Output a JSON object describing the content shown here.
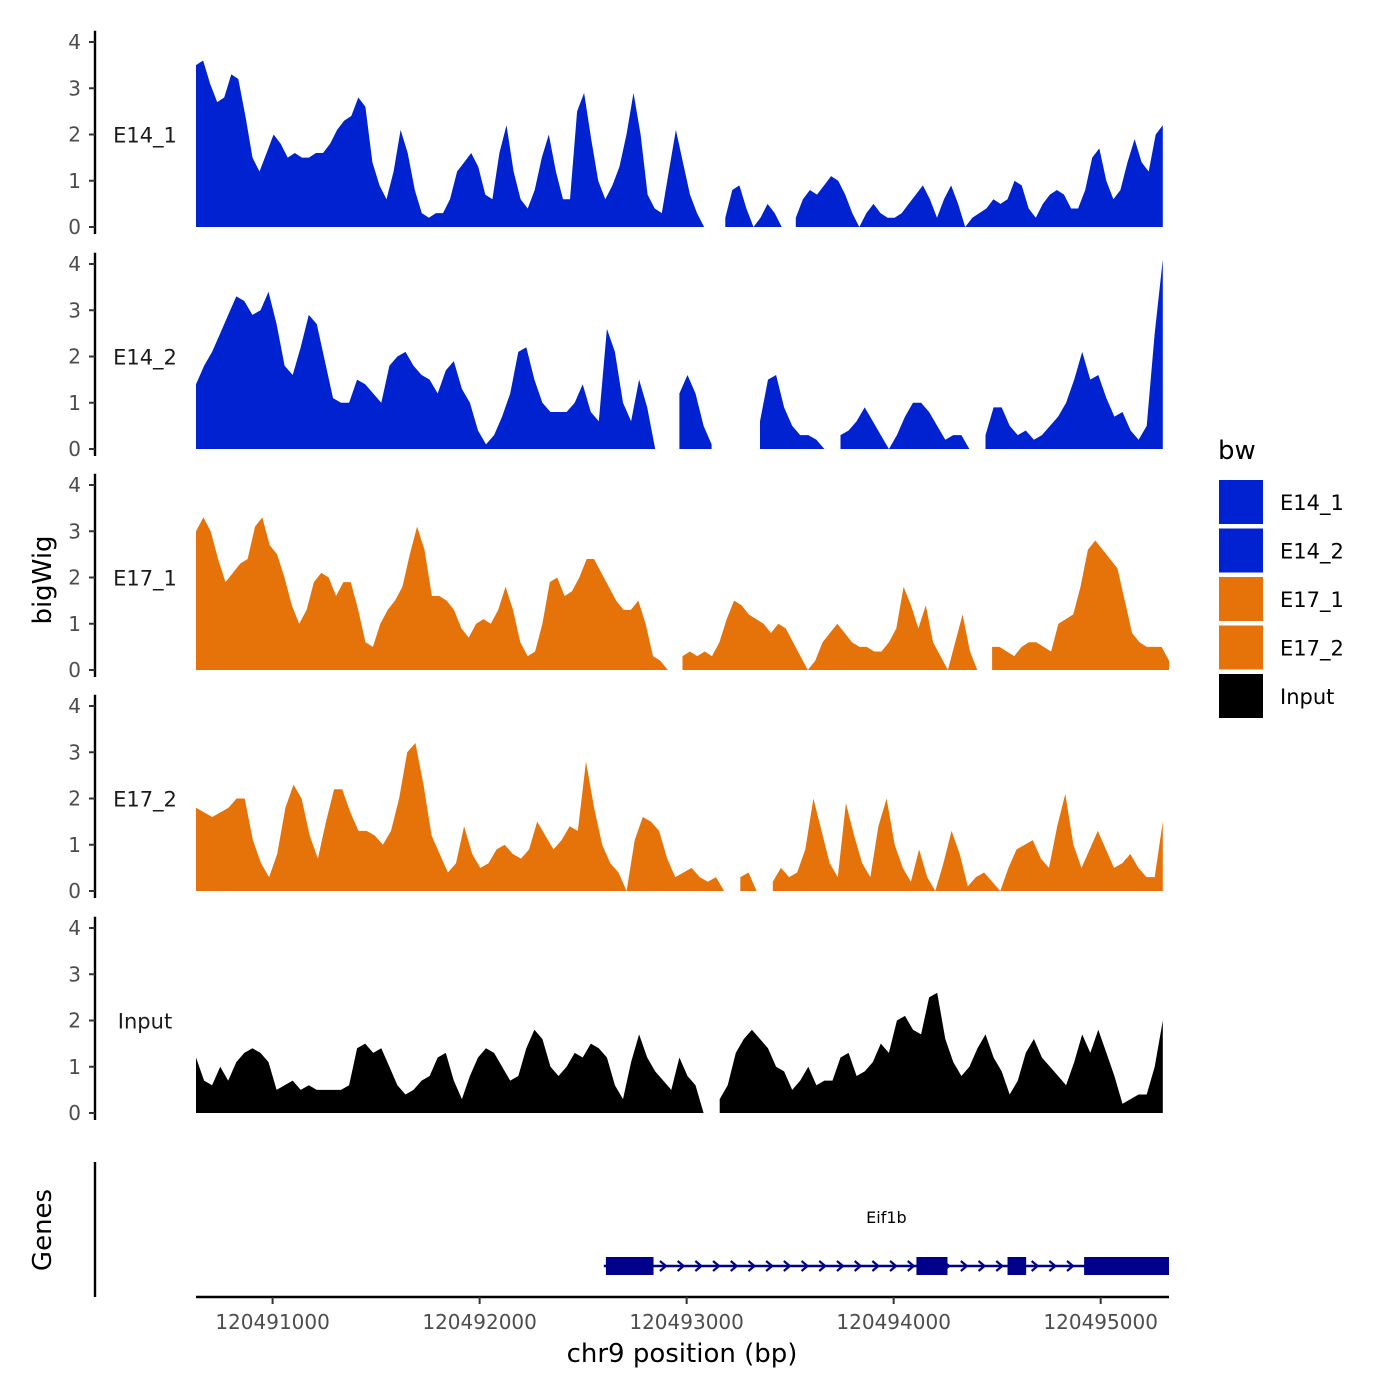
{
  "chart_data": {
    "type": "area",
    "chromosome": "chr9",
    "xlabel": "chr9 position (bp)",
    "ylabel": "bigWig",
    "xlim": [
      120490630,
      120495330
    ],
    "ylim": [
      0,
      4.2
    ],
    "x_ticks": [
      120491000,
      120492000,
      120493000,
      120494000,
      120495000
    ],
    "x_tick_labels": [
      "120491000",
      "120492000",
      "120493000",
      "120494000",
      "120495000"
    ],
    "y_ticks": [
      0,
      1,
      2,
      3,
      4
    ],
    "y_tick_labels": [
      "0",
      "1",
      "2",
      "3",
      "4"
    ],
    "legend_title": "bw",
    "legend_placement": "right",
    "colors": {
      "E14_1": "#0022d1",
      "E14_2": "#0022d1",
      "E17_1": "#e6730a",
      "E17_2": "#e6730a",
      "Input": "#000000"
    },
    "series": [
      {
        "name": "E14_1",
        "x_start": 120490630,
        "x_end": 120495300,
        "values": [
          3.5,
          3.6,
          3.1,
          2.7,
          2.8,
          3.3,
          3.2,
          2.4,
          1.5,
          1.2,
          1.6,
          2.0,
          1.8,
          1.5,
          1.6,
          1.5,
          1.5,
          1.6,
          1.6,
          1.8,
          2.1,
          2.3,
          2.4,
          2.8,
          2.6,
          1.4,
          0.9,
          0.6,
          1.2,
          2.1,
          1.6,
          0.8,
          0.3,
          0.2,
          0.3,
          0.3,
          0.6,
          1.2,
          1.4,
          1.6,
          1.3,
          0.7,
          0.6,
          1.6,
          2.2,
          1.2,
          0.6,
          0.4,
          0.8,
          1.5,
          2.0,
          1.2,
          0.6,
          0.6,
          2.5,
          2.9,
          1.9,
          1.0,
          0.6,
          0.9,
          1.3,
          2.0,
          2.9,
          2.0,
          0.7,
          0.4,
          0.3,
          1.2,
          2.1,
          1.4,
          0.7,
          0.3,
          0.0,
          null,
          null,
          0.2,
          0.8,
          0.9,
          0.4,
          0.0,
          0.2,
          0.5,
          0.3,
          0.0,
          null,
          0.2,
          0.6,
          0.8,
          0.7,
          0.9,
          1.1,
          1.0,
          0.7,
          0.3,
          0.0,
          0.3,
          0.5,
          0.3,
          0.2,
          0.2,
          0.3,
          0.5,
          0.7,
          0.9,
          0.6,
          0.2,
          0.6,
          0.9,
          0.5,
          0.0,
          0.2,
          0.3,
          0.4,
          0.6,
          0.5,
          0.6,
          1.0,
          0.9,
          0.4,
          0.2,
          0.5,
          0.7,
          0.8,
          0.7,
          0.4,
          0.4,
          0.8,
          1.5,
          1.7,
          1.0,
          0.6,
          0.8,
          1.4,
          1.9,
          1.4,
          1.2,
          2.0,
          2.2
        ]
      },
      {
        "name": "E14_2",
        "x_start": 120490630,
        "x_end": 120495300,
        "values": [
          1.4,
          1.8,
          2.1,
          2.5,
          2.9,
          3.3,
          3.2,
          2.9,
          3.0,
          3.4,
          2.7,
          1.8,
          1.6,
          2.2,
          2.9,
          2.7,
          1.9,
          1.1,
          1.0,
          1.0,
          1.5,
          1.4,
          1.2,
          1.0,
          1.8,
          2.0,
          2.1,
          1.8,
          1.6,
          1.5,
          1.2,
          1.7,
          1.9,
          1.3,
          1.0,
          0.4,
          0.1,
          0.3,
          0.7,
          1.2,
          2.1,
          2.2,
          1.5,
          1.0,
          0.8,
          0.8,
          0.8,
          1.0,
          1.4,
          0.8,
          0.6,
          2.6,
          2.1,
          1.0,
          0.6,
          1.5,
          0.9,
          0.0,
          null,
          null,
          1.2,
          1.6,
          1.2,
          0.5,
          0.1,
          null,
          null,
          null,
          null,
          null,
          0.6,
          1.5,
          1.6,
          0.9,
          0.5,
          0.3,
          0.3,
          0.2,
          0.0,
          null,
          0.3,
          0.4,
          0.6,
          0.9,
          0.6,
          0.3,
          0.0,
          0.3,
          0.7,
          1.0,
          1.0,
          0.8,
          0.5,
          0.2,
          0.3,
          0.3,
          0.0,
          null,
          0.3,
          0.9,
          0.9,
          0.5,
          0.3,
          0.4,
          0.2,
          0.3,
          0.5,
          0.7,
          1.0,
          1.5,
          2.1,
          1.5,
          1.6,
          1.1,
          0.7,
          0.8,
          0.4,
          0.2,
          0.5,
          2.5,
          4.1
        ]
      },
      {
        "name": "E17_1",
        "x_start": 120490630,
        "x_end": 120495330,
        "values": [
          3.0,
          3.3,
          3.0,
          2.4,
          1.9,
          2.1,
          2.3,
          2.4,
          3.1,
          3.3,
          2.7,
          2.5,
          2.0,
          1.4,
          1.0,
          1.3,
          1.9,
          2.1,
          2.0,
          1.6,
          1.9,
          1.9,
          1.3,
          0.6,
          0.5,
          1.0,
          1.3,
          1.5,
          1.8,
          2.5,
          3.1,
          2.6,
          1.6,
          1.6,
          1.5,
          1.3,
          0.9,
          0.7,
          1.0,
          1.1,
          1.0,
          1.3,
          1.8,
          1.3,
          0.6,
          0.3,
          0.4,
          1.0,
          1.9,
          2.0,
          1.6,
          1.7,
          2.0,
          2.4,
          2.4,
          2.1,
          1.8,
          1.5,
          1.3,
          1.3,
          1.5,
          1.0,
          0.3,
          0.2,
          0.0,
          null,
          0.3,
          0.4,
          0.3,
          0.4,
          0.3,
          0.6,
          1.1,
          1.5,
          1.4,
          1.2,
          1.1,
          1.0,
          0.8,
          1.0,
          0.9,
          0.6,
          0.3,
          0.0,
          0.2,
          0.6,
          0.8,
          1.0,
          0.8,
          0.6,
          0.5,
          0.5,
          0.4,
          0.4,
          0.6,
          0.9,
          1.8,
          1.4,
          0.9,
          1.4,
          0.6,
          0.3,
          0.0,
          0.6,
          1.2,
          0.4,
          0.0,
          null,
          0.5,
          0.5,
          0.4,
          0.3,
          0.5,
          0.6,
          0.6,
          0.5,
          0.4,
          1.0,
          1.1,
          1.2,
          1.8,
          2.6,
          2.8,
          2.6,
          2.4,
          2.2,
          1.5,
          0.8,
          0.6,
          0.5,
          0.5,
          0.5,
          0.2
        ]
      },
      {
        "name": "E17_2",
        "x_start": 120490630,
        "x_end": 120495300,
        "values": [
          1.8,
          1.7,
          1.6,
          1.7,
          1.8,
          2.0,
          2.0,
          1.1,
          0.6,
          0.3,
          0.8,
          1.8,
          2.3,
          2.0,
          1.2,
          0.7,
          1.5,
          2.2,
          2.2,
          1.7,
          1.3,
          1.3,
          1.2,
          1.0,
          1.3,
          2.0,
          3.0,
          3.2,
          2.3,
          1.2,
          0.8,
          0.4,
          0.6,
          1.4,
          0.8,
          0.5,
          0.6,
          0.9,
          1.0,
          0.8,
          0.7,
          0.9,
          1.5,
          1.2,
          0.9,
          1.1,
          1.4,
          1.3,
          2.8,
          1.8,
          1.0,
          0.6,
          0.4,
          0.0,
          1.1,
          1.6,
          1.5,
          1.3,
          0.7,
          0.3,
          0.4,
          0.5,
          0.3,
          0.2,
          0.3,
          0.0,
          null,
          0.3,
          0.4,
          0.0,
          null,
          0.2,
          0.5,
          0.3,
          0.4,
          0.9,
          2.0,
          1.3,
          0.6,
          0.3,
          1.9,
          1.2,
          0.6,
          0.3,
          1.4,
          2.0,
          1.0,
          0.5,
          0.2,
          0.9,
          0.3,
          0.0,
          0.6,
          1.3,
          0.8,
          0.1,
          0.3,
          0.4,
          0.2,
          0.0,
          0.5,
          0.9,
          1.0,
          1.1,
          0.7,
          0.5,
          1.4,
          2.1,
          1.0,
          0.5,
          0.9,
          1.3,
          0.9,
          0.5,
          0.6,
          0.8,
          0.5,
          0.3,
          0.3,
          1.5
        ]
      },
      {
        "name": "Input",
        "x_start": 120490630,
        "x_end": 120495300,
        "values": [
          1.2,
          0.7,
          0.6,
          1.0,
          0.7,
          1.1,
          1.3,
          1.4,
          1.3,
          1.1,
          0.5,
          0.6,
          0.7,
          0.5,
          0.6,
          0.5,
          0.5,
          0.5,
          0.5,
          0.6,
          1.4,
          1.5,
          1.3,
          1.4,
          1.0,
          0.6,
          0.4,
          0.5,
          0.7,
          0.8,
          1.2,
          1.3,
          0.7,
          0.3,
          0.8,
          1.2,
          1.4,
          1.3,
          1.0,
          0.7,
          0.8,
          1.4,
          1.8,
          1.6,
          1.0,
          0.8,
          1.0,
          1.3,
          1.2,
          1.5,
          1.4,
          1.2,
          0.6,
          0.3,
          1.1,
          1.7,
          1.2,
          0.9,
          0.7,
          0.5,
          1.2,
          0.8,
          0.6,
          0.0,
          null,
          0.3,
          0.6,
          1.3,
          1.6,
          1.8,
          1.6,
          1.4,
          1.0,
          0.9,
          0.5,
          0.7,
          1.0,
          0.6,
          0.7,
          0.7,
          1.2,
          1.3,
          0.8,
          0.9,
          1.1,
          1.5,
          1.3,
          2.0,
          2.1,
          1.8,
          1.7,
          2.5,
          2.6,
          1.6,
          1.1,
          0.8,
          1.0,
          1.4,
          1.7,
          1.2,
          0.9,
          0.4,
          0.7,
          1.3,
          1.6,
          1.2,
          1.0,
          0.8,
          0.6,
          1.1,
          1.7,
          1.3,
          1.8,
          1.3,
          0.8,
          0.2,
          0.3,
          0.4,
          0.4,
          1.0,
          2.0
        ]
      }
    ],
    "gene_track": {
      "label": "Genes",
      "gene_name": "Eif1b",
      "strand": "+",
      "start": 120492600,
      "end": 120495330,
      "exons": [
        [
          120492610,
          120492840
        ],
        [
          120494110,
          120494260
        ],
        [
          120494550,
          120494640
        ],
        [
          120494920,
          120495330
        ]
      ]
    }
  }
}
